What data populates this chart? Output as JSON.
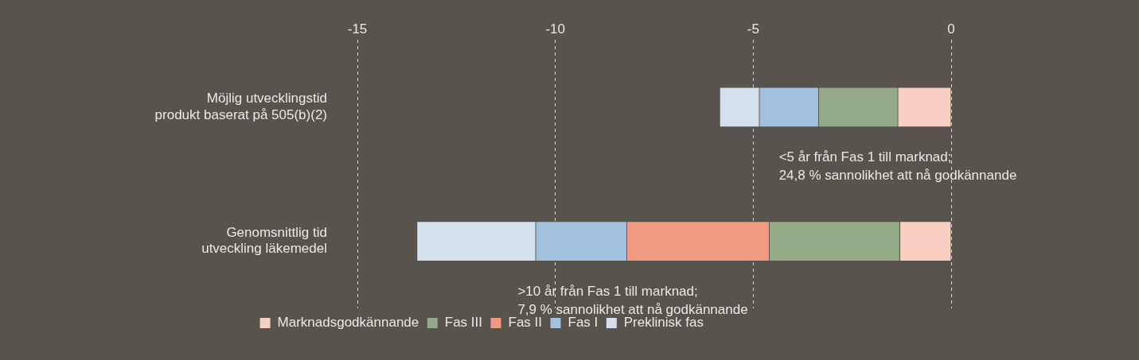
{
  "chart_data": {
    "type": "bar",
    "orientation": "horizontal",
    "stacked": true,
    "categories": [
      "Möjlig utvecklingstid\nprodukt baserat på 505(b)(2)",
      "Genomsnittlig tid\nutveckling läkemedel"
    ],
    "series": [
      {
        "name": "Marknadsgodkännande",
        "color": "#f9cfc1",
        "values": [
          -1.35,
          -1.3
        ]
      },
      {
        "name": "Fas III",
        "color": "#94aa86",
        "values": [
          -2.0,
          -3.3
        ]
      },
      {
        "name": "Fas II",
        "color": "#f09a80",
        "values": [
          null,
          -3.6
        ]
      },
      {
        "name": "Fas I",
        "color": "#a2c1de",
        "values": [
          -1.5,
          -2.3
        ]
      },
      {
        "name": "Preklinisk fas",
        "color": "#d4e0ee",
        "values": [
          -1.0,
          -3.0
        ]
      }
    ],
    "xlim": [
      -15,
      0
    ],
    "xticks": [
      -15,
      -10,
      -5,
      0
    ],
    "grid": "x",
    "legend": "bottom",
    "annotations": [
      "<5 år från Fas 1 till marknad;\n24,8 % sannolikhet att nå godkännande",
      ">10 år från Fas 1 till marknad;\n7,9 % sannolikhet att nå godkännande"
    ]
  }
}
